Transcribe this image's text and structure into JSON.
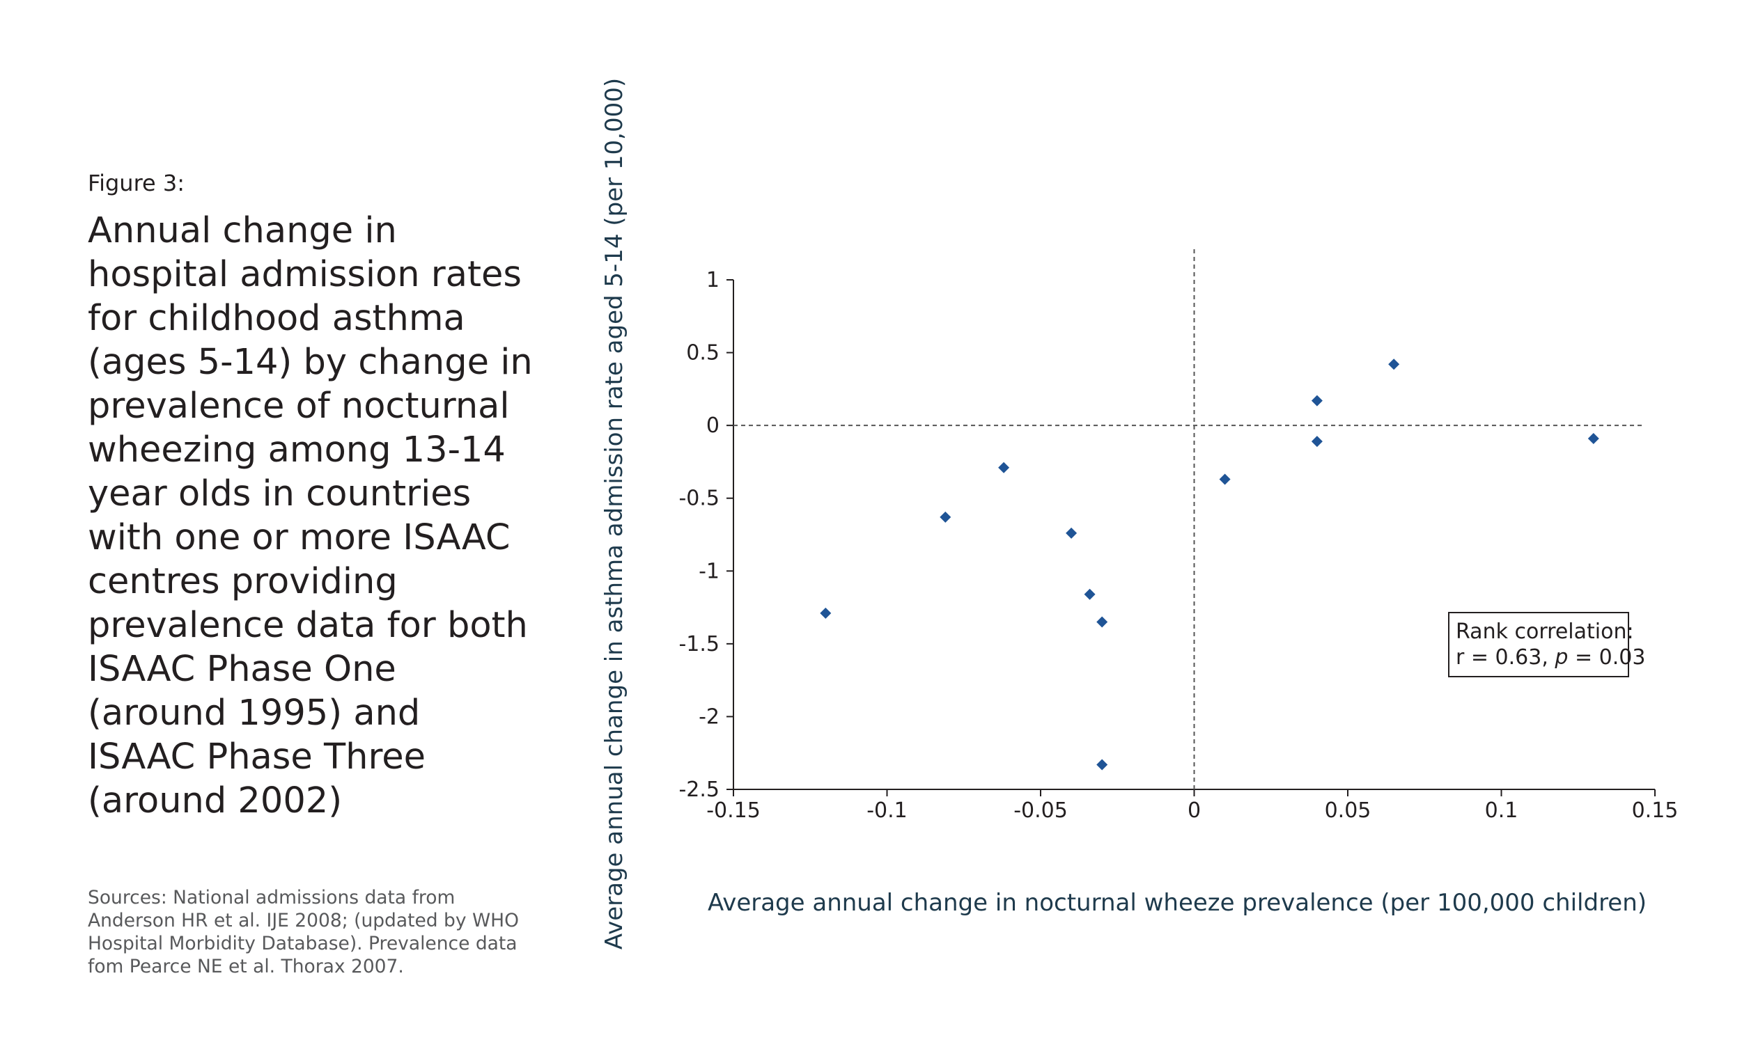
{
  "figure_label": "Figure 3:",
  "title": "Annual change in hospital admission rates for childhood asthma (ages 5-14) by change in prevalence of nocturnal wheezing among 13-14 year olds in countries with one or more ISAAC centres providing prevalence data for both ISAAC Phase One (around 1995) and ISAAC Phase Three (around 2002)",
  "sources": "Sources: National admissions data from Anderson HR et al. IJE 2008;  (updated by WHO Hospital Morbidity Database). Prevalence data fom Pearce NE et al. Thorax 2007.",
  "colors": {
    "marker": "#1f5496",
    "axis": "#231f20",
    "axis_title": "#1e3a4c"
  },
  "chart_data": {
    "type": "scatter",
    "title": "",
    "xlabel": "Average annual change in nocturnal wheeze prevalence (per 100,000 children)",
    "ylabel": "Average annual change in asthma admission rate aged 5-14 (per 10,000)",
    "xlim": [
      -0.15,
      0.15
    ],
    "ylim": [
      -2.5,
      1
    ],
    "xticks": [
      -0.15,
      -0.1,
      -0.05,
      0,
      0.05,
      0.1,
      0.15
    ],
    "xtick_labels": [
      "-0.15",
      "-0.1",
      "-0.05",
      "0",
      "0.05",
      "0.1",
      "0.15"
    ],
    "yticks": [
      1,
      0.5,
      0,
      -0.5,
      -1,
      -1.5,
      -2,
      -2.5
    ],
    "ytick_labels": [
      "1",
      "0.5",
      "0",
      "-0.5",
      "-1",
      "-1.5",
      "-2",
      "-2.5"
    ],
    "grid": false,
    "reference_lines": {
      "x": 0,
      "y": 0,
      "style": "dashed"
    },
    "marker": "diamond",
    "points": [
      {
        "x": -0.12,
        "y": -1.29
      },
      {
        "x": -0.081,
        "y": -0.63
      },
      {
        "x": -0.062,
        "y": -0.29
      },
      {
        "x": -0.04,
        "y": -0.74
      },
      {
        "x": -0.034,
        "y": -1.16
      },
      {
        "x": -0.03,
        "y": -1.35
      },
      {
        "x": -0.03,
        "y": -2.33
      },
      {
        "x": 0.01,
        "y": -0.37
      },
      {
        "x": 0.04,
        "y": 0.17
      },
      {
        "x": 0.04,
        "y": -0.11
      },
      {
        "x": 0.065,
        "y": 0.42
      },
      {
        "x": 0.13,
        "y": -0.09
      }
    ],
    "annotation": {
      "line1": "Rank correlation:",
      "line2_prefix": "r = 0.63, ",
      "line2_italic": "p",
      "line2_suffix": " = 0.03"
    }
  }
}
